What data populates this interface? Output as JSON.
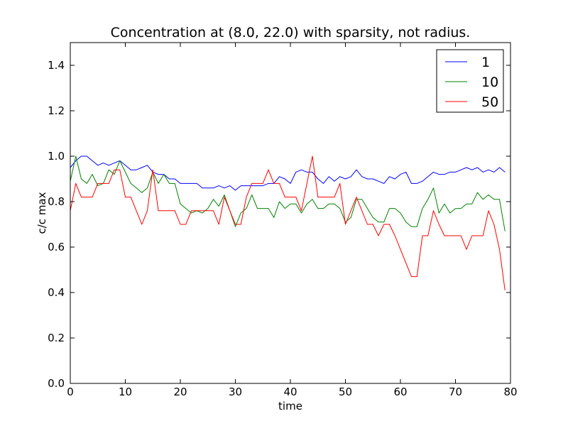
{
  "chart_data": {
    "type": "line",
    "title": "Concentration at (8.0, 22.0) with sparsity, not radius.",
    "xlabel": "time",
    "ylabel": "c/c max",
    "xlim": [
      0,
      80
    ],
    "ylim": [
      0,
      1.5
    ],
    "xticks": [
      "0",
      "10",
      "20",
      "30",
      "40",
      "50",
      "60",
      "70",
      "80"
    ],
    "yticks": [
      "0.0",
      "0.2",
      "0.4",
      "0.6",
      "0.8",
      "1.0",
      "1.2",
      "1.4"
    ],
    "grid": false,
    "legend_position": "top-right",
    "series": [
      {
        "name": "1",
        "color": "#0000ff",
        "values": [
          0.95,
          0.98,
          1.0,
          1.0,
          0.98,
          0.96,
          0.97,
          0.96,
          0.97,
          0.98,
          0.96,
          0.94,
          0.94,
          0.95,
          0.96,
          0.93,
          0.92,
          0.92,
          0.9,
          0.9,
          0.88,
          0.88,
          0.88,
          0.88,
          0.86,
          0.86,
          0.86,
          0.87,
          0.86,
          0.87,
          0.85,
          0.87,
          0.87,
          0.87,
          0.87,
          0.87,
          0.88,
          0.88,
          0.91,
          0.9,
          0.88,
          0.93,
          0.94,
          0.93,
          0.93,
          0.9,
          0.88,
          0.91,
          0.89,
          0.91,
          0.9,
          0.91,
          0.94,
          0.91,
          0.9,
          0.9,
          0.89,
          0.88,
          0.91,
          0.9,
          0.92,
          0.93,
          0.88,
          0.88,
          0.89,
          0.91,
          0.93,
          0.92,
          0.92,
          0.93,
          0.93,
          0.94,
          0.95,
          0.94,
          0.95,
          0.93,
          0.94,
          0.93,
          0.95,
          0.93
        ]
      },
      {
        "name": "10",
        "color": "#008000",
        "values": [
          0.89,
          1.0,
          0.9,
          0.88,
          0.92,
          0.87,
          0.88,
          0.94,
          0.92,
          0.98,
          0.93,
          0.88,
          0.86,
          0.84,
          0.86,
          0.93,
          0.88,
          0.92,
          0.88,
          0.88,
          0.79,
          0.77,
          0.75,
          0.76,
          0.75,
          0.77,
          0.81,
          0.78,
          0.83,
          0.76,
          0.69,
          0.75,
          0.77,
          0.83,
          0.77,
          0.77,
          0.77,
          0.73,
          0.8,
          0.77,
          0.79,
          0.79,
          0.75,
          0.79,
          0.81,
          0.77,
          0.77,
          0.79,
          0.79,
          0.77,
          0.71,
          0.73,
          0.81,
          0.81,
          0.77,
          0.73,
          0.71,
          0.71,
          0.77,
          0.77,
          0.75,
          0.71,
          0.69,
          0.69,
          0.77,
          0.81,
          0.86,
          0.75,
          0.79,
          0.75,
          0.77,
          0.77,
          0.79,
          0.79,
          0.84,
          0.81,
          0.83,
          0.81,
          0.81,
          0.67
        ]
      },
      {
        "name": "50",
        "color": "#ff0000",
        "values": [
          0.76,
          0.88,
          0.82,
          0.82,
          0.82,
          0.88,
          0.88,
          0.88,
          0.94,
          0.94,
          0.82,
          0.82,
          0.76,
          0.7,
          0.76,
          0.94,
          0.76,
          0.76,
          0.76,
          0.76,
          0.7,
          0.7,
          0.76,
          0.76,
          0.76,
          0.76,
          0.76,
          0.7,
          0.82,
          0.76,
          0.7,
          0.7,
          0.82,
          0.88,
          0.88,
          0.88,
          0.94,
          0.88,
          0.88,
          0.82,
          0.82,
          0.82,
          0.76,
          0.88,
          1.0,
          0.82,
          0.82,
          0.82,
          0.82,
          0.88,
          0.7,
          0.76,
          0.82,
          0.76,
          0.7,
          0.7,
          0.65,
          0.7,
          0.7,
          0.65,
          0.59,
          0.53,
          0.47,
          0.47,
          0.65,
          0.65,
          0.76,
          0.7,
          0.65,
          0.65,
          0.65,
          0.65,
          0.59,
          0.65,
          0.65,
          0.65,
          0.76,
          0.7,
          0.59,
          0.41
        ]
      }
    ]
  }
}
